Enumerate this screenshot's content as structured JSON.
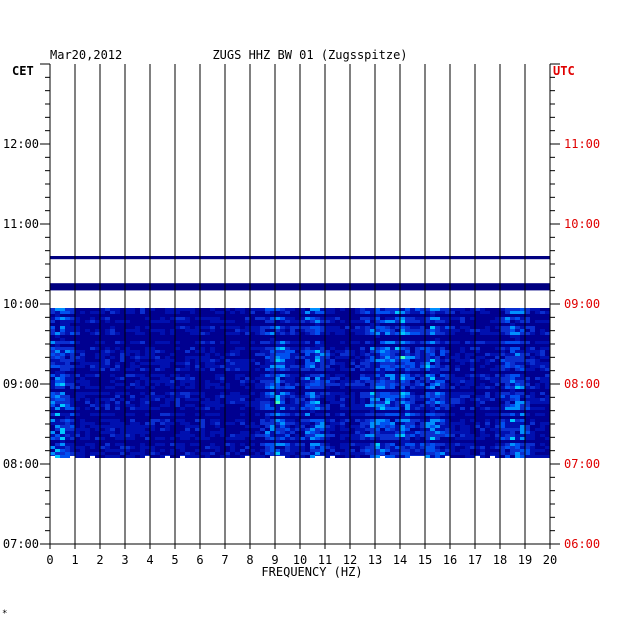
{
  "header": {
    "date": "Mar20,2012",
    "station": "ZUGS HHZ BW 01 (Zugsspitze)",
    "left_tz": "CET",
    "right_tz": "UTC",
    "corner_mark": "*"
  },
  "colors": {
    "axis": "#000000",
    "utc_labels": "#e00000",
    "background_band": "#000080",
    "spectrum_base": "#0a2fd0"
  },
  "chart_data": {
    "type": "heatmap",
    "xlabel": "FREQUENCY (HZ)",
    "xlim": [
      0,
      20
    ],
    "x_ticks": [
      "0",
      "1",
      "2",
      "3",
      "4",
      "5",
      "6",
      "7",
      "8",
      "9",
      "10",
      "11",
      "12",
      "13",
      "14",
      "15",
      "16",
      "17",
      "18",
      "19",
      "20"
    ],
    "ylim_cet_hours": [
      7,
      13
    ],
    "y_ticks_cet": [
      "07:00",
      "08:00",
      "09:00",
      "10:00",
      "11:00",
      "12:00"
    ],
    "y_ticks_utc": [
      "06:00",
      "07:00",
      "08:00",
      "09:00",
      "10:00",
      "11:00"
    ],
    "bands_cet_hours": [
      [
        10.56,
        10.6
      ],
      [
        10.17,
        10.26
      ]
    ],
    "spectrogram_cet_hours": [
      8.1,
      9.95
    ],
    "hotspots_hz": [
      0.3,
      9.0,
      10.5,
      13.0,
      14.0,
      15.2,
      18.5
    ]
  }
}
